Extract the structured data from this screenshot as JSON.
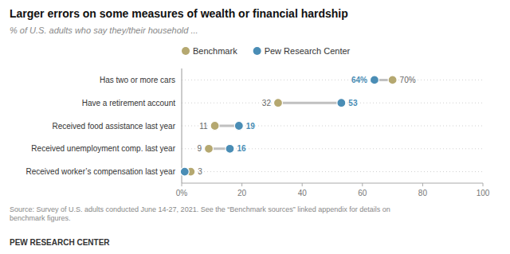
{
  "chart_data": {
    "type": "dot",
    "orientation": "horizontal",
    "title": "Larger errors on some measures of wealth or financial hardship",
    "subtitle": "% of U.S. adults who say they/their household ...",
    "categories": [
      "Has two or more cars",
      "Have a retirement account",
      "Received food assistance last year",
      "Received unemployment comp. last year",
      "Received worker’s compensation last year"
    ],
    "series": [
      {
        "name": "Benchmark",
        "color": "#b5a870",
        "values": [
          70,
          32,
          11,
          9,
          3
        ],
        "value_labels": [
          "70%",
          "32",
          "11",
          "9",
          "3"
        ]
      },
      {
        "name": "Pew Research Center",
        "color": "#4a8db5",
        "values": [
          64,
          53,
          19,
          16,
          1
        ],
        "value_labels": [
          "64%",
          "53",
          "19",
          "16",
          null
        ]
      }
    ],
    "xlim": [
      0,
      100
    ],
    "xticks": [
      {
        "value": 0,
        "label": "0%"
      },
      20,
      40,
      60,
      80,
      100
    ],
    "grid": true,
    "legend": "top",
    "data_labels": true,
    "annotations": [
      "Source: Survey of U.S. adults conducted June 14-27, 2021. See the “Benchmark sources” linked appendix for details on\nbenchmark figures.",
      "PEW RESEARCH CENTER"
    ]
  }
}
